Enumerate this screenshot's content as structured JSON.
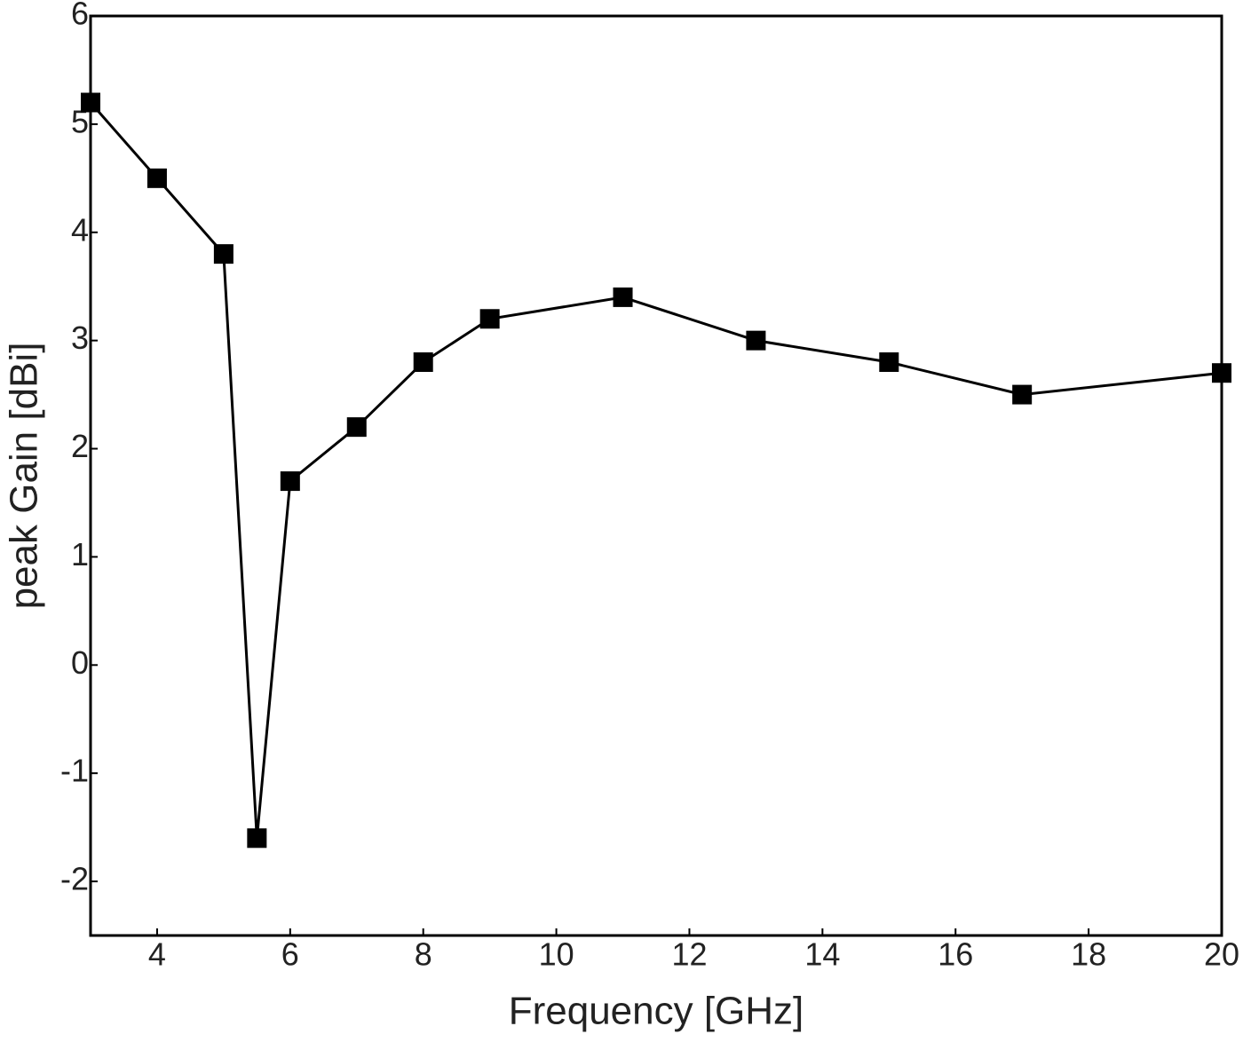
{
  "chart_data": {
    "type": "line",
    "x_label": "Frequency [GHz]",
    "y_label": "peak Gain [dBi]",
    "x": [
      3,
      4,
      5,
      5.5,
      6,
      7,
      8,
      9,
      11,
      13,
      15,
      17,
      20
    ],
    "series": [
      {
        "color": "#000000",
        "values": [
          5.2,
          4.5,
          3.8,
          -1.6,
          1.7,
          2.2,
          2.8,
          3.2,
          3.4,
          3.0,
          2.8,
          2.5,
          2.7
        ]
      }
    ],
    "xlim": [
      3,
      20
    ],
    "xticks": [
      4,
      6,
      8,
      10,
      12,
      14,
      16,
      18,
      20
    ],
    "ylim": [
      -2.5,
      6
    ],
    "yticks": [
      -2,
      -1,
      0,
      1,
      2,
      3,
      4,
      5,
      6
    ],
    "grid": false
  }
}
